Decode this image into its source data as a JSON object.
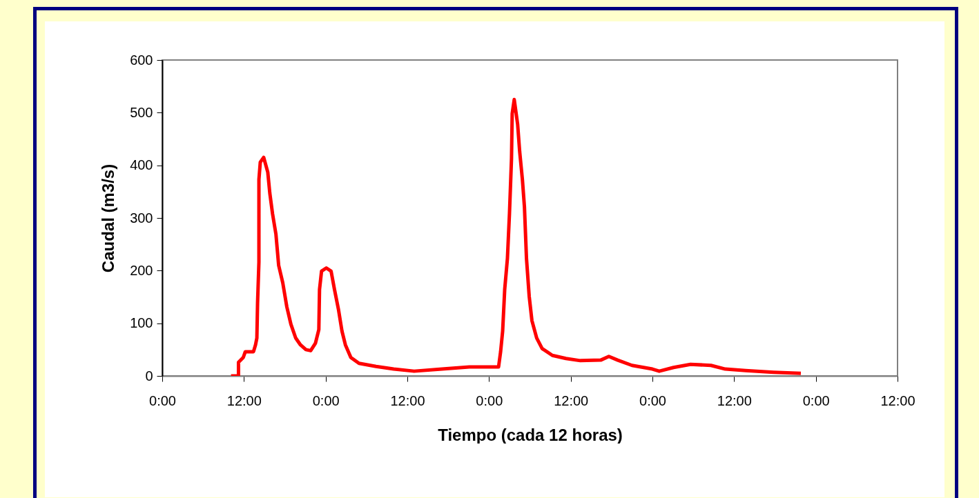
{
  "chart_data": {
    "type": "line",
    "xlabel": "Tiempo (cada 12 horas)",
    "ylabel": "Caudal (m3/s)",
    "x": [
      "2000-01-01T10:06",
      "2000-01-01T11:12",
      "2000-01-01T11:12",
      "2000-01-01T11:54",
      "2000-01-01T12:12",
      "2000-01-01T13:24",
      "2000-01-01T13:42",
      "2000-01-01T13:54",
      "2000-01-01T14:00",
      "2000-01-01T14:12",
      "2000-01-01T14:12",
      "2000-01-01T14:24",
      "2000-01-01T14:54",
      "2000-01-01T15:30",
      "2000-01-01T15:48",
      "2000-01-01T16:12",
      "2000-01-01T16:42",
      "2000-01-01T17:06",
      "2000-01-01T17:42",
      "2000-01-01T18:18",
      "2000-01-01T18:54",
      "2000-01-01T19:36",
      "2000-01-01T20:18",
      "2000-01-01T21:06",
      "2000-01-01T21:48",
      "2000-01-01T22:30",
      "2000-01-01T23:00",
      "2000-01-01T23:06",
      "2000-01-01T23:24",
      "2000-01-02T00:06",
      "2000-01-02T00:48",
      "2000-01-02T01:18",
      "2000-01-02T01:54",
      "2000-01-02T02:24",
      "2000-01-02T02:54",
      "2000-01-02T03:42",
      "2000-01-02T04:54",
      "2000-01-02T07:24",
      "2000-01-02T10:00",
      "2000-01-02T13:00",
      "2000-01-02T17:06",
      "2000-01-02T21:06",
      "2000-01-03T01:24",
      "2000-01-03T01:42",
      "2000-01-03T02:00",
      "2000-01-03T02:18",
      "2000-01-03T02:42",
      "2000-01-03T03:00",
      "2000-01-03T03:18",
      "2000-01-03T03:24",
      "2000-01-03T03:42",
      "2000-01-03T04:12",
      "2000-01-03T04:30",
      "2000-01-03T04:54",
      "2000-01-03T05:12",
      "2000-01-03T05:30",
      "2000-01-03T05:54",
      "2000-01-03T06:18",
      "2000-01-03T07:00",
      "2000-01-03T07:48",
      "2000-01-03T09:18",
      "2000-01-03T11:18",
      "2000-01-03T13:24",
      "2000-01-03T16:24",
      "2000-01-03T17:36",
      "2000-01-03T18:54",
      "2000-01-03T21:00",
      "2000-01-04T00:00",
      "2000-01-04T01:00",
      "2000-01-04T03:06",
      "2000-01-04T05:36",
      "2000-01-04T08:36",
      "2000-01-04T10:42",
      "2000-01-04T13:42",
      "2000-01-04T17:48",
      "2000-01-04T21:48"
    ],
    "series": [
      {
        "color": "#ff0000",
        "values": [
          0,
          0,
          26,
          35,
          46,
          46,
          59,
          72,
          138,
          216,
          373,
          406,
          415,
          387,
          347,
          308,
          269,
          210,
          177,
          131,
          98,
          72,
          59,
          50,
          48,
          62,
          88,
          164,
          199,
          205,
          199,
          164,
          125,
          85,
          59,
          35,
          24,
          18,
          13,
          9,
          13,
          17,
          17,
          46,
          85,
          164,
          223,
          308,
          413,
          498,
          525,
          478,
          426,
          373,
          321,
          223,
          151,
          105,
          72,
          52,
          39,
          33,
          29,
          30,
          37,
          30,
          20,
          13,
          9,
          16,
          22,
          20,
          13,
          10,
          7,
          5
        ]
      }
    ],
    "xlim": [
      "2000-01-01T00:00",
      "2000-01-05T12:00"
    ],
    "xticks": [
      {
        "value": "2000-01-01T00:00",
        "label": "0:00"
      },
      {
        "value": "2000-01-01T12:00",
        "label": "12:00"
      },
      {
        "value": "2000-01-02T00:00",
        "label": "0:00"
      },
      {
        "value": "2000-01-02T12:00",
        "label": "12:00"
      },
      {
        "value": "2000-01-03T00:00",
        "label": "0:00"
      },
      {
        "value": "2000-01-03T12:00",
        "label": "12:00"
      },
      {
        "value": "2000-01-04T00:00",
        "label": "0:00"
      },
      {
        "value": "2000-01-04T12:00",
        "label": "12:00"
      },
      {
        "value": "2000-01-05T00:00",
        "label": "0:00"
      },
      {
        "value": "2000-01-05T12:00",
        "label": "12:00"
      }
    ],
    "ylim": [
      0,
      600
    ],
    "yticks": [
      0,
      100,
      200,
      300,
      400,
      500,
      600
    ],
    "grid": false,
    "marker": "none",
    "line_style": "solid"
  }
}
